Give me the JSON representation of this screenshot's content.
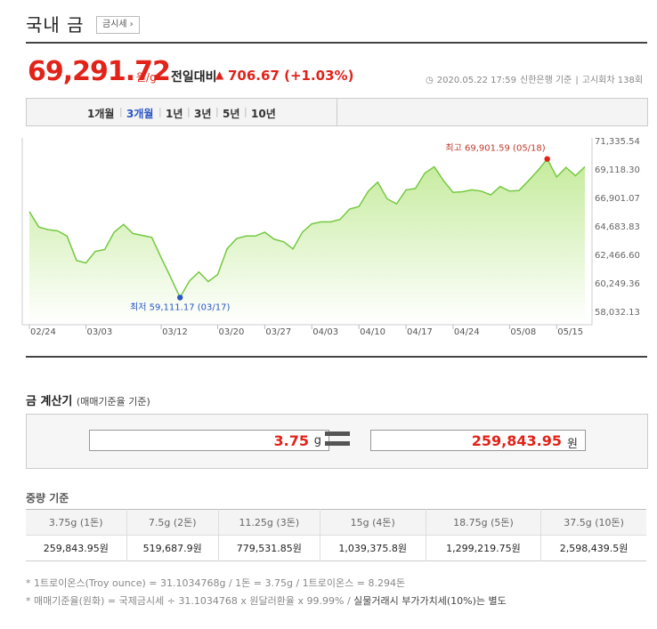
{
  "header": {
    "title": "국내 금",
    "badge": "금시세 ›"
  },
  "price": {
    "value": "69,291.72",
    "unit": "원/g",
    "change_label": "전일대비",
    "change_icon": "up-triangle",
    "change": "706.67 (+1.03%)"
  },
  "meta": {
    "datetime": "2020.05.22 17:59",
    "source": "신한은행 기준",
    "sep": "|",
    "round": "고시회차 138회"
  },
  "tabs": [
    {
      "label": "1개월"
    },
    {
      "label": "3개월"
    },
    {
      "label": "1년"
    },
    {
      "label": "3년"
    },
    {
      "label": "5년"
    },
    {
      "label": "10년"
    }
  ],
  "tab_separator": "|",
  "colors": {
    "accent_red": "#e2231a",
    "accent_blue": "#2a56c6",
    "line_green": "#75c941",
    "fill_green_top": "#cdeeaa",
    "fill_green_bottom": "#ffffff"
  },
  "chart_data": {
    "type": "area",
    "y_ticks": [
      "71,335.54",
      "69,118.30",
      "66,901.07",
      "64,683.83",
      "62,466.60",
      "60,249.36",
      "58,032.13"
    ],
    "ylim": [
      58032.13,
      71335.54
    ],
    "x_ticks": [
      "02/24",
      "03/03",
      "03/12",
      "03/20",
      "03/27",
      "04/03",
      "04/10",
      "04/17",
      "04/24",
      "05/08",
      "05/15"
    ],
    "values": [
      65800,
      64600,
      64400,
      64300,
      63900,
      62000,
      61800,
      62700,
      62850,
      64200,
      64800,
      64100,
      63950,
      63800,
      62200,
      60700,
      59111.17,
      60400,
      61100,
      60350,
      60900,
      62900,
      63700,
      63900,
      63900,
      64200,
      63650,
      63450,
      62900,
      64200,
      64850,
      65000,
      65000,
      65200,
      66000,
      66200,
      67400,
      68100,
      66800,
      66400,
      67500,
      67600,
      68800,
      69300,
      68200,
      67300,
      67350,
      67500,
      67400,
      67100,
      67750,
      67400,
      67450,
      68200,
      69000,
      69901.59,
      68500,
      69250,
      68600,
      69300
    ],
    "max_label": "최고 69,901.59 (05/18)",
    "min_label": "최저 59,111.17 (03/17)",
    "grid": false
  },
  "calculator": {
    "title": "금 계산기",
    "subtitle": "(매매기준율 기준)",
    "grams_value": "3.75",
    "grams_unit": "g",
    "result_value": "259,843.95",
    "result_unit": "원"
  },
  "weights": {
    "title": "중량 기준",
    "headers": [
      "3.75g (1돈)",
      "7.5g (2돈)",
      "11.25g (3돈)",
      "15g (4돈)",
      "18.75g (5돈)",
      "37.5g (10돈)"
    ],
    "values": [
      "259,843.95원",
      "519,687.9원",
      "779,531.85원",
      "1,039,375.8원",
      "1,299,219.75원",
      "2,598,439.5원"
    ]
  },
  "notes": {
    "line1": "* 1트로이온스(Troy ounce) = 31.1034768g / 1돈 = 3.75g / 1트로이온스 = 8.294돈",
    "line2_main": "* 매매기준율(원화) = 국제금시세 ÷ 31.1034768 x 원달러환율 x 99.99% / ",
    "line2_bold": "실물거래시 부가가치세(10%)는 별도"
  }
}
